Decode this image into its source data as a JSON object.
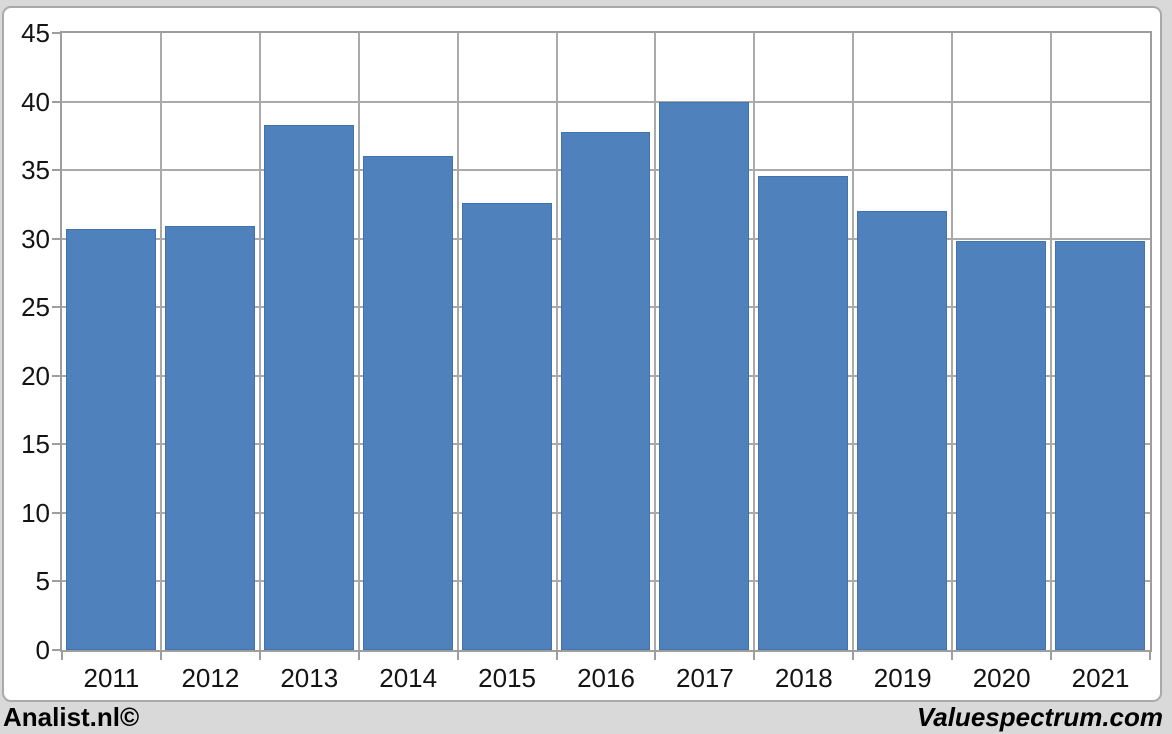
{
  "chart_data": {
    "type": "bar",
    "categories": [
      "2011",
      "2012",
      "2013",
      "2014",
      "2015",
      "2016",
      "2017",
      "2018",
      "2019",
      "2020",
      "2021"
    ],
    "values": [
      30.7,
      30.9,
      38.3,
      36.0,
      32.6,
      37.8,
      40.0,
      34.6,
      32.0,
      29.8,
      29.8
    ],
    "title": "",
    "xlabel": "",
    "ylabel": "",
    "ylim": [
      0,
      45
    ],
    "ytick_step": 5,
    "grid": true,
    "legend": "none",
    "bar_color": "#4f81bd",
    "bar_border_color": "#4174ac",
    "grid_color": "#aaaaaa",
    "axis_color": "#9e9e9e",
    "label_color": "#141414"
  },
  "footer": {
    "left": "Analist.nl©",
    "right": "Valuespectrum.com"
  },
  "frame": {
    "background": "#d9d9d9",
    "chart_background": "#ffffff",
    "border_color": "#a9a9a9"
  }
}
